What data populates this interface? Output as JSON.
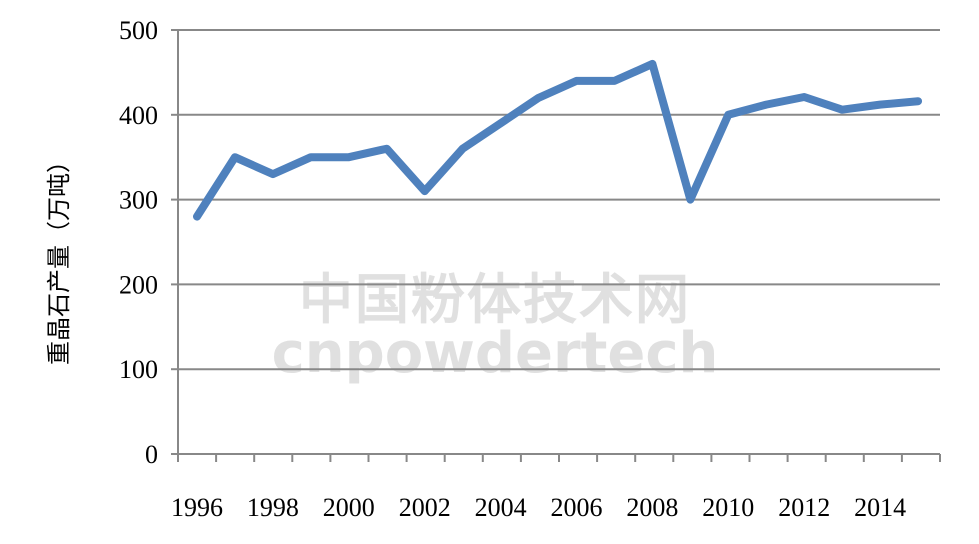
{
  "chart_data": {
    "type": "line",
    "title": "",
    "xlabel": "",
    "ylabel": "重晶石产量（万吨）",
    "x": [
      1996,
      1997,
      1998,
      1999,
      2000,
      2001,
      2002,
      2003,
      2004,
      2005,
      2006,
      2007,
      2008,
      2009,
      2010,
      2011,
      2012,
      2013,
      2014,
      2015
    ],
    "x_tick_labels": [
      "1996",
      "1998",
      "2000",
      "2002",
      "2004",
      "2006",
      "2008",
      "2010",
      "2012",
      "2014"
    ],
    "series": [
      {
        "values": [
          280,
          350,
          330,
          350,
          350,
          360,
          310,
          360,
          390,
          420,
          440,
          440,
          460,
          300,
          400,
          412,
          421,
          406,
          412,
          416
        ]
      }
    ],
    "ylim": [
      0,
      500
    ],
    "y_ticks": [
      0,
      100,
      200,
      300,
      400,
      500
    ],
    "grid": true,
    "legend": "none",
    "colors": {
      "line": "#4f81bd",
      "grid": "#888888",
      "axis": "#888888"
    }
  },
  "watermark": {
    "cn": "中国粉体技术网",
    "en": "cnpowdertech"
  }
}
